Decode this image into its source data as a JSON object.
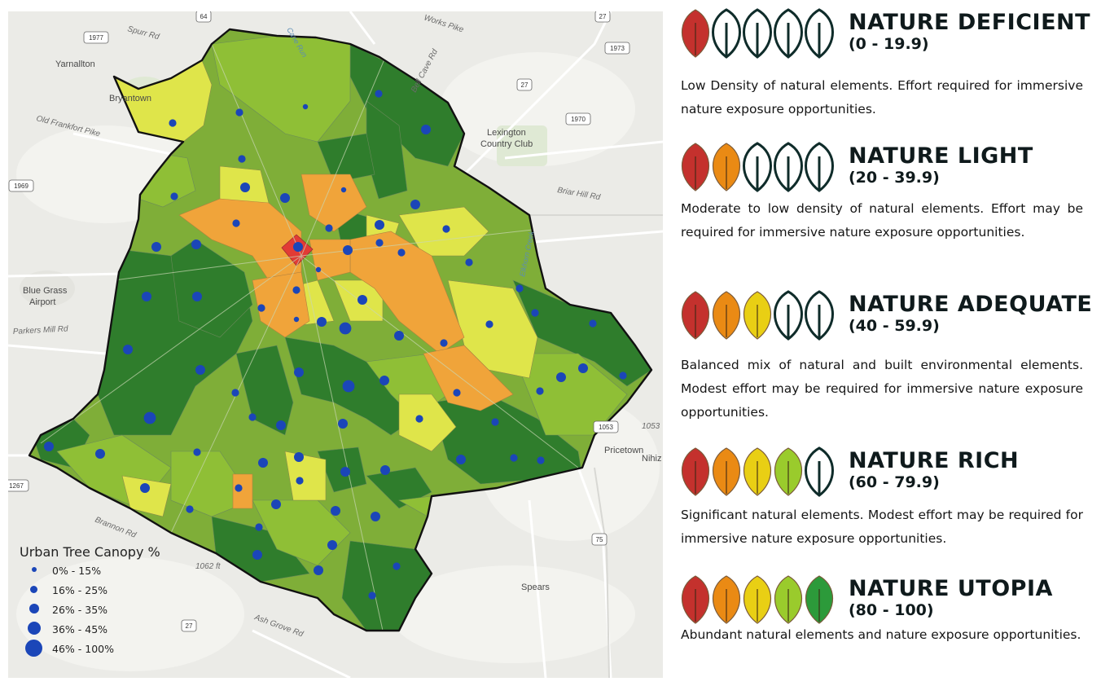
{
  "map": {
    "places": [
      "Yarnallton",
      "Bryantown",
      "Lexington Country Club",
      "Blue Grass Airport",
      "Pricetown",
      "Spears",
      "Nihiz"
    ],
    "roads": [
      "Spurr Rd",
      "Works Pike",
      "Bell Cave Rd",
      "Old Frankfort Pike",
      "Briar Hill Rd",
      "Parkers Mill Rd",
      "Brannon Rd",
      "Ash Grove Rd",
      "Elkhorn Creek",
      "Cane Run",
      "Versailles Rd"
    ],
    "shields": [
      "1977",
      "64",
      "27",
      "1973",
      "27",
      "1970",
      "1969",
      "1267",
      "1053",
      "75",
      "27"
    ],
    "elevation_labels": [
      "1062 ft",
      "1053"
    ],
    "colors": {
      "deficient": "#e23b35",
      "light": "#f0a43a",
      "adequate": "#dfe54a",
      "rich": "#8fbf36",
      "utopia": "#2f7d2c",
      "dot": "#1b46b8"
    }
  },
  "legend": {
    "title": "Urban Tree Canopy %",
    "items": [
      "0% - 15%",
      "16% - 25%",
      "26% - 35%",
      "36% - 45%",
      "46% - 100%"
    ]
  },
  "categories": [
    {
      "name": "NATURE DEFICIENT",
      "range": "(0 - 19.9)",
      "filled": 1,
      "description": "Low Density of natural elements. Effort required for immersive nature exposure opportunities."
    },
    {
      "name": "NATURE LIGHT",
      "range": "(20 - 39.9)",
      "filled": 2,
      "description": "Moderate to low density of natural elements. Effort may be required for immersive nature exposure opportunities."
    },
    {
      "name": "NATURE ADEQUATE",
      "range": "(40 - 59.9)",
      "filled": 3,
      "description": "Balanced mix of natural and built environmental elements. Modest effort may be required for immersive nature exposure opportunities."
    },
    {
      "name": "NATURE RICH",
      "range": "(60 - 79.9)",
      "filled": 4,
      "description": "Significant natural elements. Modest effort may be required for immersive nature exposure opportunities."
    },
    {
      "name": "NATURE UTOPIA",
      "range": "(80 - 100)",
      "filled": 5,
      "description": "Abundant natural elements and nature exposure opportunities."
    }
  ],
  "leaf_colors": [
    "#c4312d",
    "#ea8a14",
    "#e9cf14",
    "#9acb2c",
    "#2c9a3a"
  ],
  "leaf_outline": "#0f2c2a"
}
